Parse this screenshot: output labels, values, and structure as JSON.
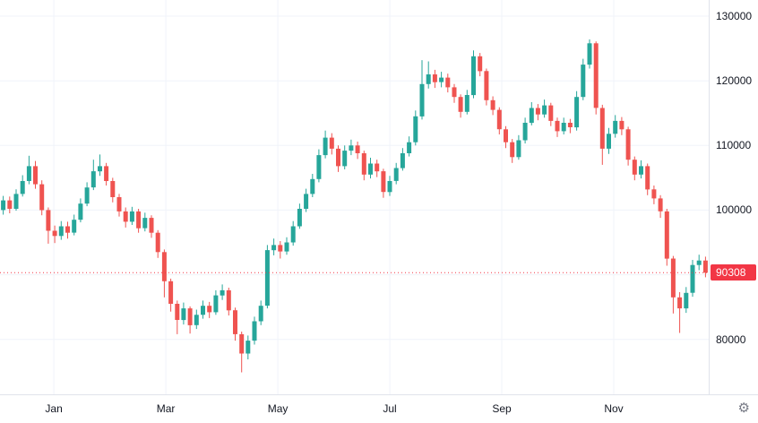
{
  "chart": {
    "up_color": "#26a69a",
    "down_color": "#ef5350",
    "badge_color": "#f23645",
    "grid_color": "#f0f3fa",
    "axis_border_color": "#e0e3eb",
    "text_color": "#131722",
    "last_price_label": "90308"
  },
  "icons": {
    "settings": "⚙"
  },
  "chart_data": {
    "type": "candlestick",
    "title": "",
    "xlabel": "",
    "ylabel": "",
    "ylim": [
      71500,
      132500
    ],
    "grid": true,
    "last_price": 90308,
    "yticks": [
      {
        "value": 80000,
        "label": "80000"
      },
      {
        "value": 90000,
        "label": ""
      },
      {
        "value": 100000,
        "label": "100000"
      },
      {
        "value": 110000,
        "label": "110000"
      },
      {
        "value": 120000,
        "label": "120000"
      },
      {
        "value": 130000,
        "label": "130000"
      }
    ],
    "xticks": [
      {
        "label": "Jan",
        "f": 0.076
      },
      {
        "label": "Mar",
        "f": 0.234
      },
      {
        "label": "May",
        "f": 0.392
      },
      {
        "label": "Jul",
        "f": 0.55
      },
      {
        "label": "Sep",
        "f": 0.708
      },
      {
        "label": "Nov",
        "f": 0.866
      }
    ],
    "candles": [
      [
        100000,
        102200,
        99300,
        101500
      ],
      [
        101500,
        102100,
        99500,
        100200
      ],
      [
        100200,
        103200,
        99900,
        102500
      ],
      [
        102500,
        105400,
        102100,
        104500
      ],
      [
        104500,
        108400,
        104000,
        106800
      ],
      [
        106800,
        107600,
        103300,
        104000
      ],
      [
        104000,
        104600,
        99200,
        100000
      ],
      [
        100000,
        100400,
        94800,
        96800
      ],
      [
        96800,
        97600,
        94900,
        96000
      ],
      [
        96000,
        98300,
        95400,
        97500
      ],
      [
        97500,
        98200,
        95600,
        96500
      ],
      [
        96500,
        99300,
        96100,
        98500
      ],
      [
        98500,
        101800,
        98100,
        101000
      ],
      [
        101000,
        104300,
        100600,
        103500
      ],
      [
        103500,
        107800,
        103100,
        106000
      ],
      [
        106000,
        108600,
        105300,
        106800
      ],
      [
        106800,
        107300,
        103800,
        104500
      ],
      [
        104500,
        105000,
        101200,
        102000
      ],
      [
        102000,
        102500,
        99000,
        99800
      ],
      [
        99800,
        100400,
        97300,
        98200
      ],
      [
        98200,
        100500,
        97700,
        99800
      ],
      [
        99800,
        100200,
        96500,
        97200
      ],
      [
        97200,
        99600,
        96700,
        98800
      ],
      [
        98800,
        99200,
        95700,
        96500
      ],
      [
        96500,
        96900,
        92600,
        93500
      ],
      [
        93500,
        93900,
        86500,
        89000
      ],
      [
        89000,
        89400,
        84300,
        85500
      ],
      [
        85500,
        86000,
        80800,
        83000
      ],
      [
        83000,
        85700,
        82300,
        84800
      ],
      [
        84800,
        85100,
        80900,
        82200
      ],
      [
        82200,
        84600,
        81600,
        83800
      ],
      [
        83800,
        86000,
        83200,
        85200
      ],
      [
        85200,
        85800,
        83300,
        84200
      ],
      [
        84200,
        87600,
        83800,
        86800
      ],
      [
        86800,
        88500,
        86100,
        87600
      ],
      [
        87600,
        88000,
        83700,
        84500
      ],
      [
        84500,
        84900,
        79800,
        80800
      ],
      [
        80800,
        81200,
        74900,
        77800
      ],
      [
        77800,
        80600,
        76900,
        79800
      ],
      [
        79800,
        83500,
        79200,
        82800
      ],
      [
        82800,
        86000,
        82200,
        85200
      ],
      [
        85200,
        94600,
        84800,
        93800
      ],
      [
        93800,
        95600,
        93000,
        94600
      ],
      [
        94600,
        95200,
        92500,
        93600
      ],
      [
        93600,
        95800,
        93100,
        95000
      ],
      [
        95000,
        98300,
        94500,
        97500
      ],
      [
        97500,
        101000,
        97100,
        100200
      ],
      [
        100200,
        103300,
        99700,
        102500
      ],
      [
        102500,
        105600,
        102000,
        104800
      ],
      [
        104800,
        109400,
        104300,
        108500
      ],
      [
        108500,
        112300,
        108000,
        111200
      ],
      [
        111200,
        111900,
        108600,
        109500
      ],
      [
        109500,
        110000,
        105900,
        106800
      ],
      [
        106800,
        110000,
        106300,
        109200
      ],
      [
        109200,
        110900,
        108500,
        110000
      ],
      [
        110000,
        110600,
        107900,
        108800
      ],
      [
        108800,
        109200,
        104600,
        105500
      ],
      [
        105500,
        108100,
        104900,
        107200
      ],
      [
        107200,
        107800,
        105100,
        106000
      ],
      [
        106000,
        106400,
        101900,
        102800
      ],
      [
        102800,
        105300,
        102200,
        104500
      ],
      [
        104500,
        107300,
        104000,
        106500
      ],
      [
        106500,
        109600,
        106100,
        108800
      ],
      [
        108800,
        111400,
        108300,
        110500
      ],
      [
        110500,
        115400,
        110000,
        114500
      ],
      [
        114500,
        123200,
        114000,
        119500
      ],
      [
        119500,
        123000,
        118800,
        121000
      ],
      [
        121000,
        121700,
        118900,
        119800
      ],
      [
        119800,
        121400,
        119000,
        120500
      ],
      [
        120500,
        121100,
        118200,
        119000
      ],
      [
        119000,
        119500,
        116600,
        117500
      ],
      [
        117500,
        117900,
        114300,
        115200
      ],
      [
        115200,
        118600,
        114800,
        117800
      ],
      [
        117800,
        124700,
        117300,
        123800
      ],
      [
        123800,
        124300,
        120700,
        121500
      ],
      [
        121500,
        121900,
        116200,
        117000
      ],
      [
        117000,
        117600,
        114700,
        115500
      ],
      [
        115500,
        115900,
        111700,
        112500
      ],
      [
        112500,
        113000,
        109600,
        110500
      ],
      [
        110500,
        111000,
        107300,
        108200
      ],
      [
        108200,
        111600,
        107800,
        110800
      ],
      [
        110800,
        114300,
        110300,
        113500
      ],
      [
        113500,
        116700,
        113100,
        115800
      ],
      [
        115800,
        116400,
        113900,
        114800
      ],
      [
        114800,
        117100,
        114300,
        116200
      ],
      [
        116200,
        116600,
        113000,
        113800
      ],
      [
        113800,
        114300,
        111300,
        112200
      ],
      [
        112200,
        114300,
        111700,
        113500
      ],
      [
        113500,
        114100,
        111900,
        112800
      ],
      [
        112800,
        118400,
        112300,
        117500
      ],
      [
        117500,
        123400,
        117000,
        122500
      ],
      [
        122500,
        126400,
        121900,
        125800
      ],
      [
        125800,
        126100,
        114800,
        115800
      ],
      [
        115800,
        116300,
        107000,
        109500
      ],
      [
        109500,
        112700,
        108700,
        111800
      ],
      [
        111800,
        114700,
        111200,
        113800
      ],
      [
        113800,
        114400,
        111600,
        112500
      ],
      [
        112500,
        112900,
        106900,
        107800
      ],
      [
        107800,
        108300,
        104600,
        105500
      ],
      [
        105500,
        107700,
        104900,
        106800
      ],
      [
        106800,
        107200,
        102300,
        103200
      ],
      [
        103200,
        103800,
        100900,
        101800
      ],
      [
        101800,
        102300,
        98800,
        99800
      ],
      [
        99800,
        100200,
        91400,
        92500
      ],
      [
        92500,
        92900,
        84000,
        86500
      ],
      [
        86500,
        87300,
        81000,
        84800
      ],
      [
        84800,
        88100,
        84100,
        87200
      ],
      [
        87200,
        92300,
        86600,
        91500
      ],
      [
        91500,
        93100,
        90700,
        92200
      ],
      [
        92200,
        92800,
        89600,
        90308
      ]
    ]
  }
}
